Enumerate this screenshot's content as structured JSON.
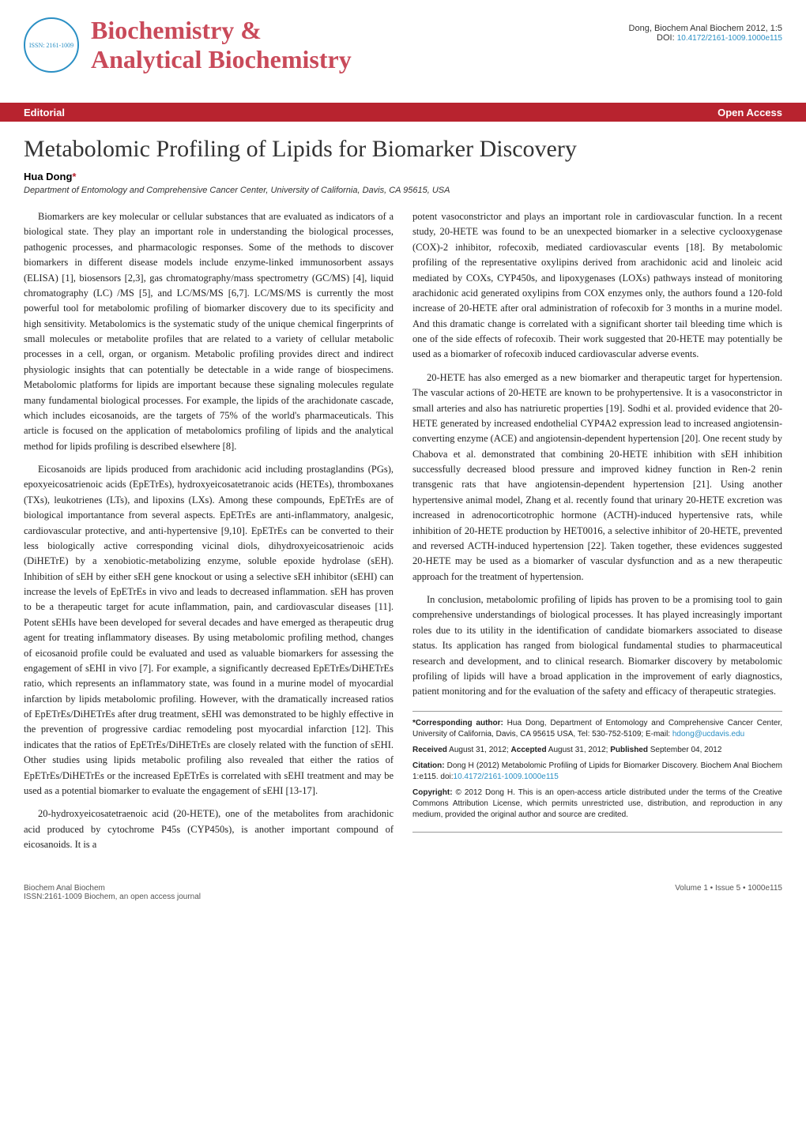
{
  "header": {
    "journal_line1": "Biochemistry &",
    "journal_line2": "Analytical Biochemistry",
    "citation_line": "Dong, Biochem Anal Biochem 2012, 1:5",
    "doi_prefix": "DOI: ",
    "doi": "10.4172/2161-1009.1000e115",
    "logo_issn": "ISSN: 2161-1009"
  },
  "redbar": {
    "left": "Editorial",
    "right": "Open Access"
  },
  "article": {
    "title": "Metabolomic Profiling of Lipids for Biomarker Discovery",
    "author": "Hua Dong",
    "author_star": "*",
    "affiliation": "Department of Entomology and Comprehensive Cancer Center, University of California, Davis, CA 95615, USA"
  },
  "left_col": {
    "p1": "Biomarkers are key molecular or cellular substances that are evaluated as indicators of a biological state. They play an important role in understanding the biological processes, pathogenic processes, and pharmacologic responses. Some of the methods to discover biomarkers in different disease models include enzyme-linked immunosorbent assays (ELISA) [1], biosensors [2,3], gas chromatography/mass spectrometry (GC/MS) [4], liquid chromatography (LC) /MS [5], and LC/MS/MS [6,7]. LC/MS/MS is currently the most powerful tool for metabolomic profiling of biomarker discovery due to its specificity and high sensitivity. Metabolomics is the systematic study of the unique chemical fingerprints of small molecules or metabolite profiles that are related to a variety of cellular metabolic processes in a cell, organ, or organism. Metabolic profiling provides direct and indirect physiologic insights that can potentially be detectable in a wide range of biospecimens. Metabolomic platforms for lipids are important because these signaling molecules regulate many fundamental biological processes. For example, the lipids of the arachidonate cascade, which includes eicosanoids, are the targets of 75% of the world's pharmaceuticals. This article is focused on the application of metabolomics profiling of lipids and the analytical method for lipids profiling is described elsewhere [8].",
    "p2": "Eicosanoids are lipids produced from arachidonic acid including prostaglandins (PGs), epoxyeicosatrienoic acids (EpETrEs), hydroxyeicosatetranoic acids (HETEs), thromboxanes (TXs), leukotrienes (LTs), and lipoxins (LXs). Among these compounds, EpETrEs are of biological importantance from several aspects. EpETrEs are anti-inflammatory, analgesic, cardiovascular protective, and anti-hypertensive [9,10]. EpETrEs can be converted to their less biologically active corresponding vicinal diols, dihydroxyeicosatrienoic acids (DiHETrE) by a xenobiotic-metabolizing enzyme, soluble epoxide hydrolase (sEH). Inhibition of sEH by either sEH gene knockout or using a selective sEH inhibitor (sEHI) can increase the levels of EpETrEs in vivo and leads to decreased inflammation. sEH has proven to be a therapeutic target for acute inflammation, pain, and cardiovascular diseases [11]. Potent sEHIs have been developed for several decades and have emerged as therapeutic drug agent for treating inflammatory diseases. By using metabolomic profiling method, changes of eicosanoid profile could be evaluated and used as valuable biomarkers for assessing the engagement of sEHI in vivo [7]. For example, a significantly decreased EpETrEs/DiHETrEs ratio, which represents an inflammatory state, was found in a murine model of myocardial infarction by lipids metabolomic profiling. However, with the dramatically increased ratios of EpETrEs/DiHETrEs after drug treatment, sEHI was demonstrated to be highly effective in the prevention of progressive cardiac remodeling post myocardial infarction [12]. This indicates that the ratios of EpETrEs/DiHETrEs are closely related with the function of sEHI. Other studies using lipids metabolic profiling also revealed that either the ratios of EpETrEs/DiHETrEs or the increased EpETrEs is correlated with sEHI treatment and may be used as a potential biomarker to evaluate the engagement of sEHI [13-17].",
    "p3": "20-hydroxyeicosatetraenoic acid (20-HETE), one of the metabolites from arachidonic acid produced by cytochrome P45s (CYP450s), is another important compound of eicosanoids. It is a"
  },
  "right_col": {
    "p1": "potent vasoconstrictor and plays an important role in cardiovascular function. In a recent study, 20-HETE was found to be an unexpected biomarker in a selective cyclooxygenase (COX)-2 inhibitor, rofecoxib, mediated cardiovascular events [18]. By metabolomic profiling of the representative oxylipins derived from arachidonic acid and linoleic acid mediated by COXs, CYP450s, and lipoxygenases (LOXs) pathways instead of monitoring arachidonic acid generated oxylipins from COX enzymes only, the authors found a 120-fold increase of 20-HETE after oral administration of rofecoxib for 3 months in a murine model. And this dramatic change is correlated with a significant shorter tail bleeding time which is one of the side effects of rofecoxib. Their work suggested that 20-HETE may potentially be used as a biomarker of rofecoxib induced cardiovascular adverse events.",
    "p2": "20-HETE has also emerged as a new biomarker and therapeutic target for hypertension. The vascular actions of 20-HETE are known to be prohypertensive. It is a vasoconstrictor in small arteries and also has natriuretic properties [19]. Sodhi et al. provided evidence that 20-HETE generated by increased endothelial CYP4A2 expression lead to increased angiotensin-converting enzyme (ACE) and angiotensin-dependent hypertension [20]. One recent study by Chabova et al. demonstrated that combining 20-HETE inhibition with sEH inhibition successfully decreased blood pressure and improved kidney function in Ren-2 renin transgenic rats that have angiotensin-dependent hypertension [21]. Using another hypertensive animal model, Zhang et al. recently found that urinary 20-HETE excretion was increased in adrenocorticotrophic hormone (ACTH)-induced hypertensive rats, while inhibition of 20-HETE production by HET0016, a selective inhibitor of 20-HETE, prevented and reversed ACTH-induced hypertension [22]. Taken together, these evidences suggested 20-HETE may be used as a biomarker of vascular dysfunction and as a new therapeutic approach for the treatment of hypertension.",
    "p3": "In conclusion, metabolomic profiling of lipids has proven to be a promising tool to gain comprehensive understandings of biological processes. It has played increasingly important roles due to its utility in the identification of candidate biomarkers associated to disease status. Its application has ranged from biological fundamental studies to pharmaceutical research and development, and to clinical research. Biomarker discovery by metabolomic profiling of lipids will have a broad application in the improvement of early diagnostics, patient monitoring and for the evaluation of the safety and efficacy of therapeutic strategies."
  },
  "infobox": {
    "corresponding_label": "*Corresponding author:",
    "corresponding_text": " Hua Dong, Department of Entomology and Comprehensive Cancer Center, University of California, Davis, CA 95615 USA, Tel: 530-752-5109; E-mail: ",
    "corresponding_email": "hdong@ucdavis.edu",
    "received_label": "Received",
    "received_text": " August 31, 2012; ",
    "accepted_label": "Accepted",
    "accepted_text": " August 31, 2012; ",
    "published_label": "Published",
    "published_text": " September 04, 2012",
    "citation_label": "Citation:",
    "citation_text": " Dong H (2012) Metabolomic Profiling of Lipids for Biomarker Discovery. Biochem Anal Biochem 1:e115. doi:",
    "citation_doi": "10.4172/2161-1009.1000e115",
    "copyright_label": "Copyright:",
    "copyright_text": " © 2012 Dong H. This is an open-access article distributed under the terms of the Creative Commons Attribution License, which permits unrestricted use, distribution, and reproduction in any medium, provided the original author and source are credited."
  },
  "footer": {
    "left_line1": "Biochem Anal Biochem",
    "left_line2": "ISSN:2161-1009 Biochem, an open access journal",
    "right": "Volume 1 • Issue 5 • 1000e115"
  },
  "colors": {
    "red_bar": "#b8232f",
    "journal_title": "#c94a5a",
    "link": "#2a8fc4"
  }
}
